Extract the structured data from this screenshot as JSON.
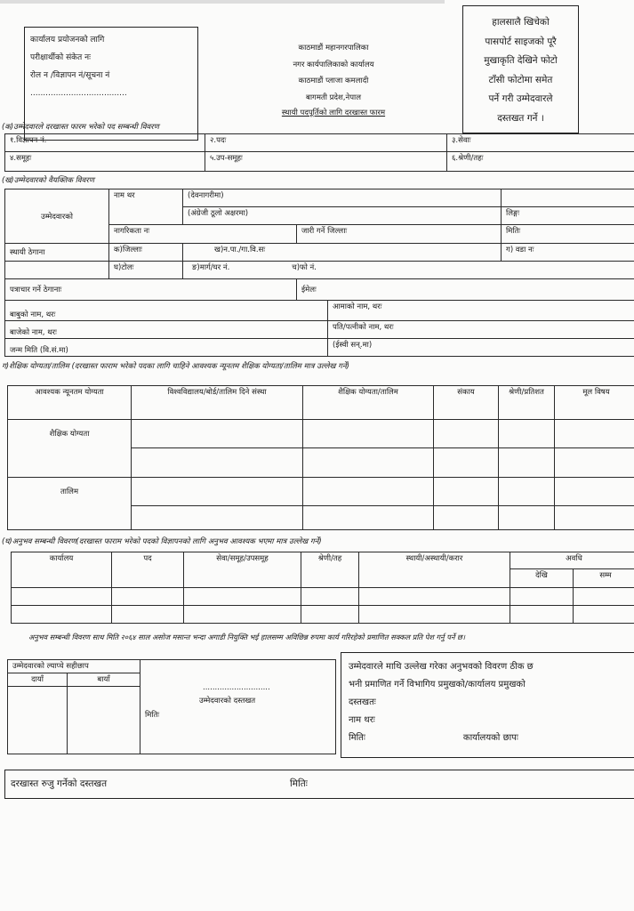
{
  "office_box": {
    "l1": "कार्यालय प्रयोजनको लागि",
    "l2": "परीक्षार्थीको संकेत नः",
    "l3": "रोल न /विज्ञापन नं/सूचना नं",
    "l4": "......................................"
  },
  "header": {
    "l1": "काठमाडौं महानगरपालिका",
    "l2": "नगर कार्यपालिकाको कार्यालय",
    "l3": "काठमाडौं प्लाजा कमलादी",
    "l4": "बागमती प्रदेश,नेपाल",
    "title": "स्थायी पदपूर्तिको लागि दरखास्त फारम"
  },
  "photo_box": {
    "l1": "हालसालै खिचेको",
    "l2": "पासपोर्ट साइजको पूरै",
    "l3": "मुखाकृति देखिने फोटो",
    "l4": "टाँसी फोटोमा समेत",
    "l5": "पर्ने गरी उम्मेदवारले",
    "l6": "दस्तखत गर्ने ।"
  },
  "sec_k": {
    "title": "(क)उम्मेदवारले दरखास्त फारम भरेको पद सम्बन्धी विवरण",
    "f1": "१.विज्ञापन नं.",
    "f2": "२.पदः",
    "f3": "३.सेवाः",
    "f4": "४.समूहः",
    "f5": "५.उप-समूहः",
    "f6": "६.श्रेणी/तहः"
  },
  "sec_kh": {
    "title": "(ख)उम्मेदवारको वैयक्तिक विवरण",
    "candidate": "उम्मेदवारको",
    "name": "नाम थर",
    "devanagari": "(देवनागरीमा)",
    "english": "(अंग्रेजी ठूलो अक्षरमा)",
    "gender": "लिङ्गः",
    "citizenship": "नागरिकता नः",
    "issue_district": "जारी गर्ने जिल्लाः",
    "date": "मितिः",
    "permanent_address": "स्थायी ठेगाना",
    "district": "क)जिल्लाः",
    "municipality": "ख)न.पा./गा.वि.सः",
    "ward": "ग) वडा नः",
    "tole": "घ)टोलः",
    "marga": "ङ)मार्ग/घर नं.",
    "phone": "च)फो नं.",
    "mailing": "पत्राचार गर्ने ठेगानाः",
    "email": "ईमेलः",
    "father": "बाबुको नाम, थरः",
    "mother": "आमाको नाम, थरः",
    "grandfather": "बाजेको नाम, थरः",
    "spouse": "पति/पत्नीको नाम, थरः",
    "dob_bs": "जन्म मिति (वि.सं.मा)",
    "dob_ad": "(ईस्वी सन्.मा)"
  },
  "sec_g": {
    "title": "ग)शैक्षिक योग्यता/तालिम (दरखास्त फाराम भरेको पदका लागि चाहिने आवश्यक न्यूनतम शैक्षिक योग्यता/तालिम मात्र उल्लेख गर्ने)",
    "headers": [
      "आवश्यक न्यूनतम योग्यता",
      "विश्वविद्यालय/बोर्ड/तालिम दिने संस्था",
      "शैक्षिक योग्यता/तालिम",
      "संकाय",
      "श्रेणी/प्रतिशत",
      "मूल विषय"
    ],
    "row_edu": "शैक्षिक योग्यता",
    "row_training": "तालिम"
  },
  "sec_gh": {
    "title": "(घ)अनुभव सम्बन्धी विवरण(दरखास्त फाराम भरेको पदको विज्ञापनको लागि अनुभव आवश्यक भएमा मात्र उल्लेख गर्ने)",
    "headers": [
      "कार्यालय",
      "पद",
      "सेवा/समूह/उपसमूह",
      "श्रेणी/तह",
      "स्थायी/अस्थायी/करार",
      "अवधि"
    ],
    "from": "देखि",
    "to": "सम्म"
  },
  "note": "अनुभव सम्बन्धी विवरण साथ मिति २०६४ साल असोज मसान्त भन्दा अगाडी नियुक्ति भई हालसम्म अविछिन्न रुपमा कार्य गरिरहेको प्रमाणित सक्कल प्रति पेश गर्नु पर्ने छ।",
  "fingerprint": {
    "title": "उम्मेदवारको ल्याप्चे सहीछाप",
    "right": "दायाँ",
    "left": "बायाँ",
    "dots": "............................",
    "signature": "उम्मेदवारको दस्तखत",
    "date": "मितिः"
  },
  "certify": {
    "l1": "उम्मेदवारले माथि उल्लेख गरेका अनुभवको विवरण ठीक छ",
    "l2": "भनी प्रमाणित गर्ने विभागिय प्रमुखको/कार्यालय प्रमुखको",
    "sign": "दस्तखतः",
    "name": "नाम थरः",
    "date": "मितिः",
    "stamp": "कार्यालयको छापः"
  },
  "bottom": {
    "sign": "दरखास्त रुजु गर्नेको दस्तखत",
    "date": "मितिः"
  }
}
